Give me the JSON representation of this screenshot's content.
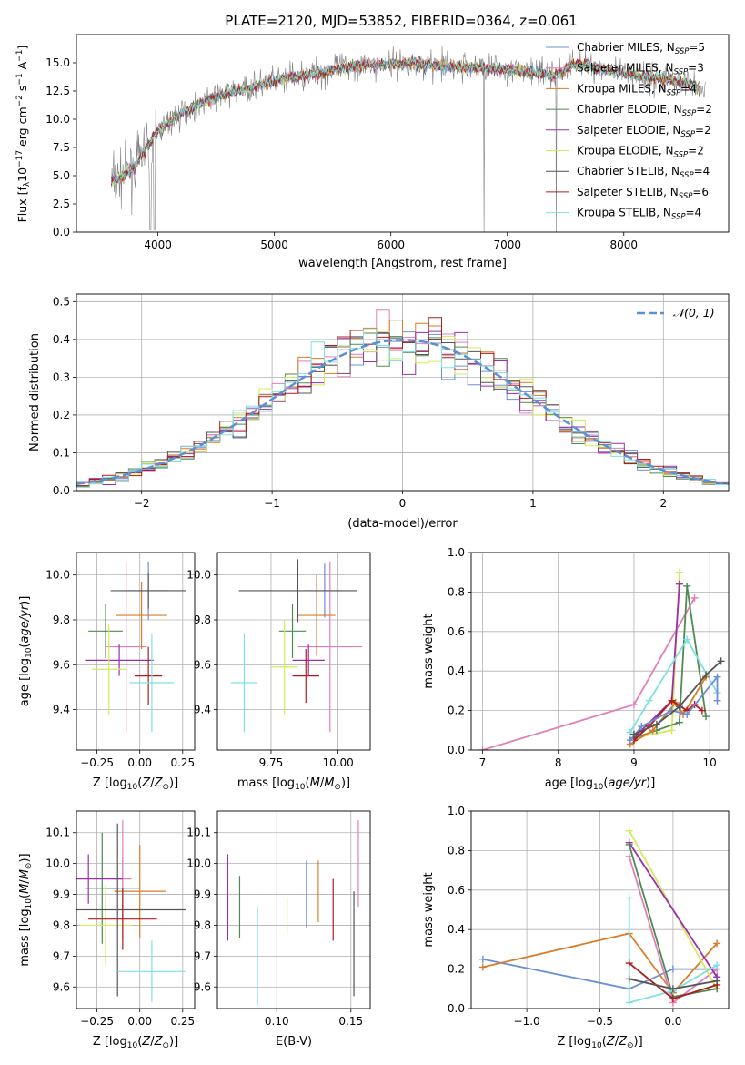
{
  "figure_title": "PLATE=2120, MJD=53852, FIBERID=0364, z=0.061",
  "colors": {
    "Chabrier MILES": "#6a8fd8",
    "Salpeter MILES": "#e27fb8",
    "Kroupa MILES": "#d97c2a",
    "Chabrier ELODIE": "#4e8a52",
    "Salpeter ELODIE": "#9a2fb0",
    "Kroupa ELODIE": "#d4ea5a",
    "Chabrier STELIB": "#555555",
    "Salpeter STELIB": "#b01c1c",
    "Kroupa STELIB": "#7fe0e0",
    "data": "#808080",
    "gaussian": "#5b8fd6"
  },
  "chart_data": [
    {
      "type": "line",
      "title": "PLATE=2120, MJD=53852, FIBERID=0364, z=0.061",
      "xlabel": "wavelength [Angstrom, rest frame]",
      "ylabel": "Flux [f_λ 10^-17 erg cm^-2 s^-1 A^-1]",
      "xlim": [
        3300,
        8900
      ],
      "ylim": [
        0,
        17.5
      ],
      "xticks": [
        "4000",
        "5000",
        "6000",
        "7000",
        "8000"
      ],
      "yticks": [
        "0.0",
        "2.5",
        "5.0",
        "7.5",
        "10.0",
        "12.5",
        "15.0"
      ],
      "continuum": {
        "x": [
          3600,
          3700,
          3800,
          3900,
          4000,
          4200,
          4400,
          4600,
          4800,
          5000,
          5200,
          5400,
          5600,
          5800,
          6000,
          6200,
          6400,
          6600,
          6800,
          7000,
          7200,
          7400,
          7600,
          7800,
          8000,
          8200,
          8400,
          8600,
          8700
        ],
        "y": [
          4.5,
          5.0,
          5.8,
          7.5,
          9.0,
          10.5,
          11.6,
          12.3,
          12.8,
          13.4,
          13.8,
          14.1,
          14.6,
          14.8,
          14.9,
          15.0,
          14.7,
          14.6,
          14.6,
          14.4,
          14.2,
          13.9,
          15.0,
          14.5,
          14.0,
          13.8,
          13.5,
          13.0,
          12.5
        ]
      },
      "legend": [
        {
          "label": "Chabrier MILES, N",
          "nssp": "5"
        },
        {
          "label": "Salpeter MILES, N",
          "nssp": "3"
        },
        {
          "label": "Kroupa MILES, N",
          "nssp": "4"
        },
        {
          "label": "Chabrier ELODIE, N",
          "nssp": "2"
        },
        {
          "label": "Salpeter ELODIE, N",
          "nssp": "2"
        },
        {
          "label": "Kroupa ELODIE, N",
          "nssp": "2"
        },
        {
          "label": "Chabrier STELIB, N",
          "nssp": "4"
        },
        {
          "label": "Salpeter STELIB, N",
          "nssp": "6"
        },
        {
          "label": "Kroupa STELIB, N",
          "nssp": "4"
        }
      ],
      "nssp_sub": "SSP",
      "legend_loc": "right"
    },
    {
      "type": "step",
      "xlabel": "(data-model)/error",
      "ylabel": "Normed distribution",
      "xlim": [
        -2.5,
        2.5
      ],
      "ylim": [
        0,
        0.52
      ],
      "xticks": [
        "−2",
        "−1",
        "0",
        "1",
        "2"
      ],
      "yticks": [
        "0.0",
        "0.1",
        "0.2",
        "0.3",
        "0.4",
        "0.5"
      ],
      "legend_label": "𝒩(0, 1)",
      "legend_loc": "top-right",
      "grid": true
    },
    {
      "type": "errorbar",
      "panel": "age-vs-Z",
      "xlabel": "Z [log10(Z/Z⊙)]",
      "ylabel": "age [log10(age/yr)]",
      "xlim": [
        -0.37,
        0.32
      ],
      "ylim": [
        9.22,
        10.1
      ],
      "xticks": [
        "−0.25",
        "0.00",
        "0.25"
      ],
      "yticks": [
        "9.4",
        "9.6",
        "9.8",
        "10.0"
      ],
      "points": [
        {
          "s": "Chabrier MILES",
          "x": 0.05,
          "y": 9.93,
          "xe": 0.12,
          "ye": 0.13
        },
        {
          "s": "Salpeter MILES",
          "x": -0.08,
          "y": 9.68,
          "xe": 0.12,
          "ye": 0.38
        },
        {
          "s": "Kroupa MILES",
          "x": 0.01,
          "y": 9.82,
          "xe": 0.15,
          "ye": 0.15
        },
        {
          "s": "Chabrier ELODIE",
          "x": -0.2,
          "y": 9.75,
          "xe": 0.1,
          "ye": 0.12
        },
        {
          "s": "Salpeter ELODIE",
          "x": -0.12,
          "y": 9.62,
          "xe": 0.2,
          "ye": 0.07
        },
        {
          "s": "Kroupa ELODIE",
          "x": -0.18,
          "y": 9.58,
          "xe": 0.1,
          "ye": 0.2
        },
        {
          "s": "Chabrier STELIB",
          "x": 0.05,
          "y": 9.93,
          "xe": 0.22,
          "ye": 0.08
        },
        {
          "s": "Salpeter STELIB",
          "x": 0.05,
          "y": 9.55,
          "xe": 0.08,
          "ye": 0.13
        },
        {
          "s": "Kroupa STELIB",
          "x": 0.07,
          "y": 9.52,
          "xe": 0.13,
          "ye": 0.22
        }
      ]
    },
    {
      "type": "errorbar",
      "panel": "age-vs-mass",
      "xlabel": "mass [log10(M/M⊙)]",
      "xlim": [
        9.55,
        10.12
      ],
      "ylim": [
        9.22,
        10.1
      ],
      "xticks": [
        "9.75",
        "10.00"
      ],
      "yticks": [
        "9.4",
        "9.6",
        "9.8",
        "10.0"
      ],
      "points": [
        {
          "s": "Chabrier MILES",
          "x": 9.95,
          "y": 9.93,
          "xe": 0.07,
          "ye": 0.12
        },
        {
          "s": "Salpeter MILES",
          "x": 9.97,
          "y": 9.68,
          "xe": 0.12,
          "ye": 0.38
        },
        {
          "s": "Kroupa MILES",
          "x": 9.92,
          "y": 9.82,
          "xe": 0.07,
          "ye": 0.18
        },
        {
          "s": "Chabrier ELODIE",
          "x": 9.83,
          "y": 9.75,
          "xe": 0.05,
          "ye": 0.12
        },
        {
          "s": "Salpeter ELODIE",
          "x": 9.89,
          "y": 9.62,
          "xe": 0.06,
          "ye": 0.07
        },
        {
          "s": "Kroupa ELODIE",
          "x": 9.8,
          "y": 9.59,
          "xe": 0.05,
          "ye": 0.21
        },
        {
          "s": "Chabrier STELIB",
          "x": 9.85,
          "y": 9.93,
          "xe": 0.22,
          "ye": 0.14
        },
        {
          "s": "Salpeter STELIB",
          "x": 9.88,
          "y": 9.55,
          "xe": 0.05,
          "ye": 0.12
        },
        {
          "s": "Kroupa STELIB",
          "x": 9.65,
          "y": 9.52,
          "xe": 0.05,
          "ye": 0.22
        }
      ]
    },
    {
      "type": "line",
      "panel": "weight-vs-age",
      "xlabel": "age [log10(age/yr)]",
      "ylabel": "mass weight",
      "xlim": [
        6.85,
        10.25
      ],
      "ylim": [
        0,
        1.0
      ],
      "xticks": [
        "7",
        "8",
        "9",
        "10"
      ],
      "yticks": [
        "0.0",
        "0.2",
        "0.4",
        "0.6",
        "0.8",
        "1.0"
      ],
      "series": [
        {
          "s": "Salpeter MILES",
          "x": [
            7.0,
            9.0,
            9.8
          ],
          "y": [
            0.0,
            0.23,
            0.77
          ]
        },
        {
          "s": "Kroupa ELODIE",
          "x": [
            9.0,
            9.5,
            9.6
          ],
          "y": [
            0.06,
            0.1,
            0.9
          ]
        },
        {
          "s": "Salpeter ELODIE",
          "x": [
            9.0,
            9.1,
            9.5,
            9.6
          ],
          "y": [
            0.06,
            0.1,
            0.25,
            0.84
          ]
        },
        {
          "s": "Chabrier ELODIE",
          "x": [
            9.0,
            9.3,
            9.6,
            9.7,
            9.95
          ],
          "y": [
            0.06,
            0.1,
            0.14,
            0.83,
            0.17
          ]
        },
        {
          "s": "Kroupa STELIB",
          "x": [
            8.95,
            9.2,
            9.7,
            10.1
          ],
          "y": [
            0.09,
            0.25,
            0.56,
            0.29
          ]
        },
        {
          "s": "Kroupa MILES",
          "x": [
            8.95,
            9.25,
            9.55,
            9.65,
            9.95
          ],
          "y": [
            0.03,
            0.1,
            0.24,
            0.18,
            0.37
          ]
        },
        {
          "s": "Salpeter STELIB",
          "x": [
            9.0,
            9.2,
            9.5,
            9.7,
            9.8,
            9.9
          ],
          "y": [
            0.05,
            0.12,
            0.25,
            0.2,
            0.23,
            0.2
          ]
        },
        {
          "s": "Chabrier MILES",
          "x": [
            8.95,
            9.1,
            9.5,
            9.7,
            10.1,
            10.1
          ],
          "y": [
            0.05,
            0.12,
            0.2,
            0.18,
            0.37,
            0.25
          ]
        },
        {
          "s": "Chabrier STELIB",
          "x": [
            9.0,
            9.3,
            9.6,
            9.95,
            10.15
          ],
          "y": [
            0.08,
            0.13,
            0.22,
            0.38,
            0.45
          ]
        }
      ]
    },
    {
      "type": "errorbar",
      "panel": "mass-vs-Z",
      "xlabel": "Z [log10(Z/Z⊙)]",
      "ylabel": "mass [log10(M/M⊙)]",
      "xlim": [
        -0.37,
        0.32
      ],
      "ylim": [
        9.53,
        10.17
      ],
      "xticks": [
        "−0.25",
        "0.00",
        "0.25"
      ],
      "yticks": [
        "9.6",
        "9.7",
        "9.8",
        "9.9",
        "10.0",
        "10.1"
      ],
      "points": [
        {
          "s": "Chabrier MILES",
          "x": -0.1,
          "y": 9.92,
          "xe": 0.1,
          "ye": 0.1
        },
        {
          "s": "Salpeter MILES",
          "x": -0.1,
          "y": 9.95,
          "xe": 0.05,
          "ye": 0.19
        },
        {
          "s": "Kroupa MILES",
          "x": 0.0,
          "y": 9.91,
          "xe": 0.15,
          "ye": 0.15
        },
        {
          "s": "Chabrier ELODIE",
          "x": -0.22,
          "y": 9.92,
          "xe": 0.1,
          "ye": 0.18
        },
        {
          "s": "Salpeter ELODIE",
          "x": -0.3,
          "y": 9.95,
          "xe": 0.2,
          "ye": 0.08
        },
        {
          "s": "Kroupa ELODIE",
          "x": -0.2,
          "y": 9.8,
          "xe": 0.15,
          "ye": 0.13
        },
        {
          "s": "Chabrier STELIB",
          "x": -0.13,
          "y": 9.85,
          "xe": 0.4,
          "ye": 0.28
        },
        {
          "s": "Salpeter STELIB",
          "x": -0.1,
          "y": 9.82,
          "xe": 0.2,
          "ye": 0.1
        },
        {
          "s": "Kroupa STELIB",
          "x": 0.07,
          "y": 9.65,
          "xe": 0.2,
          "ye": 0.1
        }
      ]
    },
    {
      "type": "errorbar",
      "panel": "mass-vs-EBV",
      "xlabel": "E(B-V)",
      "xlim": [
        0.06,
        0.163
      ],
      "ylim": [
        9.53,
        10.17
      ],
      "xticks": [
        "0.10",
        "0.15"
      ],
      "yticks": [
        "9.6",
        "9.7",
        "9.8",
        "9.9",
        "10.0",
        "10.1"
      ],
      "points": [
        {
          "s": "Chabrier MILES",
          "x": 0.12,
          "y": 9.9,
          "xe": 0,
          "ye": 0.11
        },
        {
          "s": "Salpeter MILES",
          "x": 0.155,
          "y": 10.0,
          "xe": 0,
          "ye": 0.14
        },
        {
          "s": "Kroupa MILES",
          "x": 0.128,
          "y": 9.91,
          "xe": 0,
          "ye": 0.1
        },
        {
          "s": "Chabrier ELODIE",
          "x": 0.075,
          "y": 9.86,
          "xe": 0,
          "ye": 0.1
        },
        {
          "s": "Salpeter ELODIE",
          "x": 0.067,
          "y": 9.89,
          "xe": 0,
          "ye": 0.14
        },
        {
          "s": "Kroupa ELODIE",
          "x": 0.107,
          "y": 9.83,
          "xe": 0,
          "ye": 0.06
        },
        {
          "s": "Chabrier STELIB",
          "x": 0.152,
          "y": 9.74,
          "xe": 0,
          "ye": 0.17
        },
        {
          "s": "Salpeter STELIB",
          "x": 0.138,
          "y": 9.85,
          "xe": 0,
          "ye": 0.1
        },
        {
          "s": "Kroupa STELIB",
          "x": 0.087,
          "y": 9.7,
          "xe": 0,
          "ye": 0.16
        }
      ]
    },
    {
      "type": "line",
      "panel": "weight-vs-Z",
      "xlabel": "Z [log10(Z/Z⊙)]",
      "ylabel": "mass weight",
      "xlim": [
        -1.38,
        0.38
      ],
      "ylim": [
        0,
        1.0
      ],
      "xticks": [
        "−1.0",
        "−0.5",
        "0.0"
      ],
      "yticks": [
        "0.0",
        "0.2",
        "0.4",
        "0.6",
        "0.8",
        "1.0"
      ],
      "series": [
        {
          "s": "Chabrier MILES",
          "x": [
            -1.3,
            -0.3,
            0.0,
            0.3
          ],
          "y": [
            0.25,
            0.1,
            0.2,
            0.2
          ]
        },
        {
          "s": "Kroupa MILES",
          "x": [
            -1.3,
            -0.3,
            0.0,
            0.3
          ],
          "y": [
            0.21,
            0.38,
            0.08,
            0.33
          ]
        },
        {
          "s": "Salpeter MILES",
          "x": [
            -0.3,
            0.0,
            0.3
          ],
          "y": [
            0.77,
            0.03,
            0.2
          ]
        },
        {
          "s": "Kroupa ELODIE",
          "x": [
            -0.3,
            0.3
          ],
          "y": [
            0.9,
            0.1
          ]
        },
        {
          "s": "Salpeter ELODIE",
          "x": [
            -0.3,
            0.3
          ],
          "y": [
            0.84,
            0.16
          ]
        },
        {
          "s": "Chabrier ELODIE",
          "x": [
            -0.3,
            0.0,
            0.3
          ],
          "y": [
            0.83,
            0.06,
            0.1
          ]
        },
        {
          "s": "Kroupa STELIB",
          "x": [
            -0.3,
            -0.3,
            0.0,
            0.3
          ],
          "y": [
            0.56,
            0.03,
            0.09,
            0.22
          ]
        },
        {
          "s": "Salpeter STELIB",
          "x": [
            -0.3,
            0.0,
            0.3
          ],
          "y": [
            0.23,
            0.05,
            0.12
          ]
        },
        {
          "s": "Chabrier STELIB",
          "x": [
            -0.3,
            0.0,
            0.3
          ],
          "y": [
            0.15,
            0.1,
            0.14
          ]
        }
      ]
    }
  ]
}
